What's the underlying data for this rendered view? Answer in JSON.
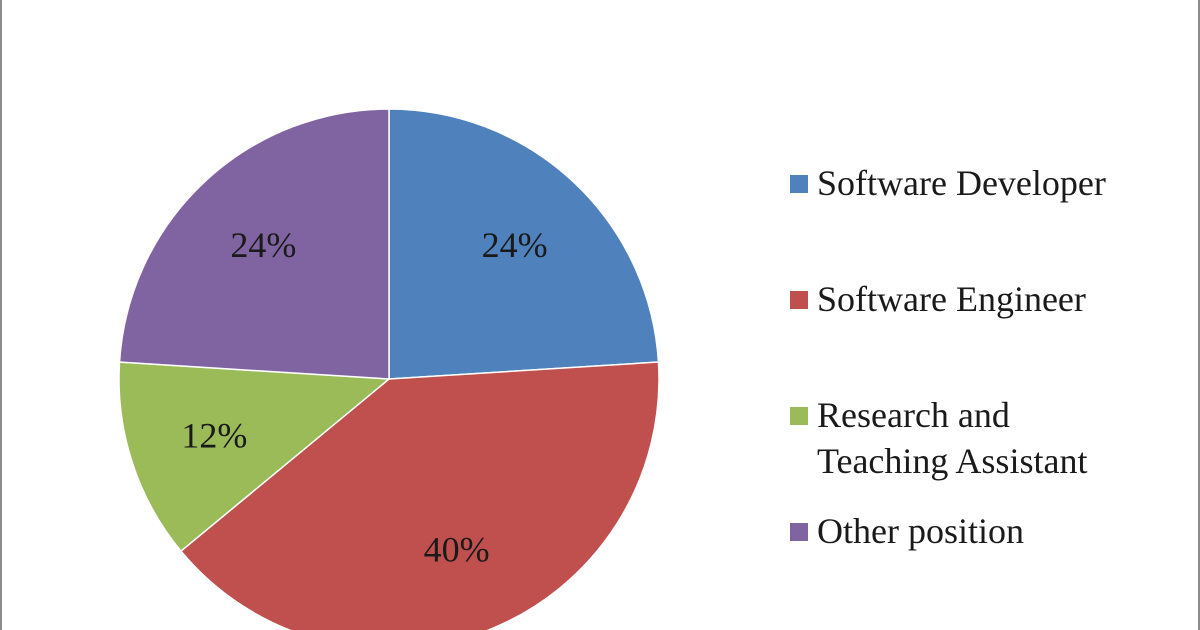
{
  "chart_data": {
    "type": "pie",
    "title": "",
    "categories": [
      "Software Developer",
      "Software Engineer",
      "Research and Teaching Assistant",
      "Other position"
    ],
    "values": [
      24,
      40,
      12,
      24
    ],
    "data_labels": [
      "24%",
      "40%",
      "12%",
      "24%"
    ],
    "colors": [
      "#4f81bd",
      "#c0504d",
      "#9bbb59",
      "#8064a2"
    ],
    "legend_position": "right",
    "start_angle_deg": 0,
    "direction": "clockwise"
  },
  "legend": {
    "items": [
      {
        "label": "Software Developer",
        "color": "#4f81bd"
      },
      {
        "label": "Software Engineer",
        "color": "#c0504d"
      },
      {
        "label": "Research and\nTeaching Assistant",
        "color": "#9bbb59"
      },
      {
        "label": "Other position",
        "color": "#8064a2"
      }
    ]
  }
}
